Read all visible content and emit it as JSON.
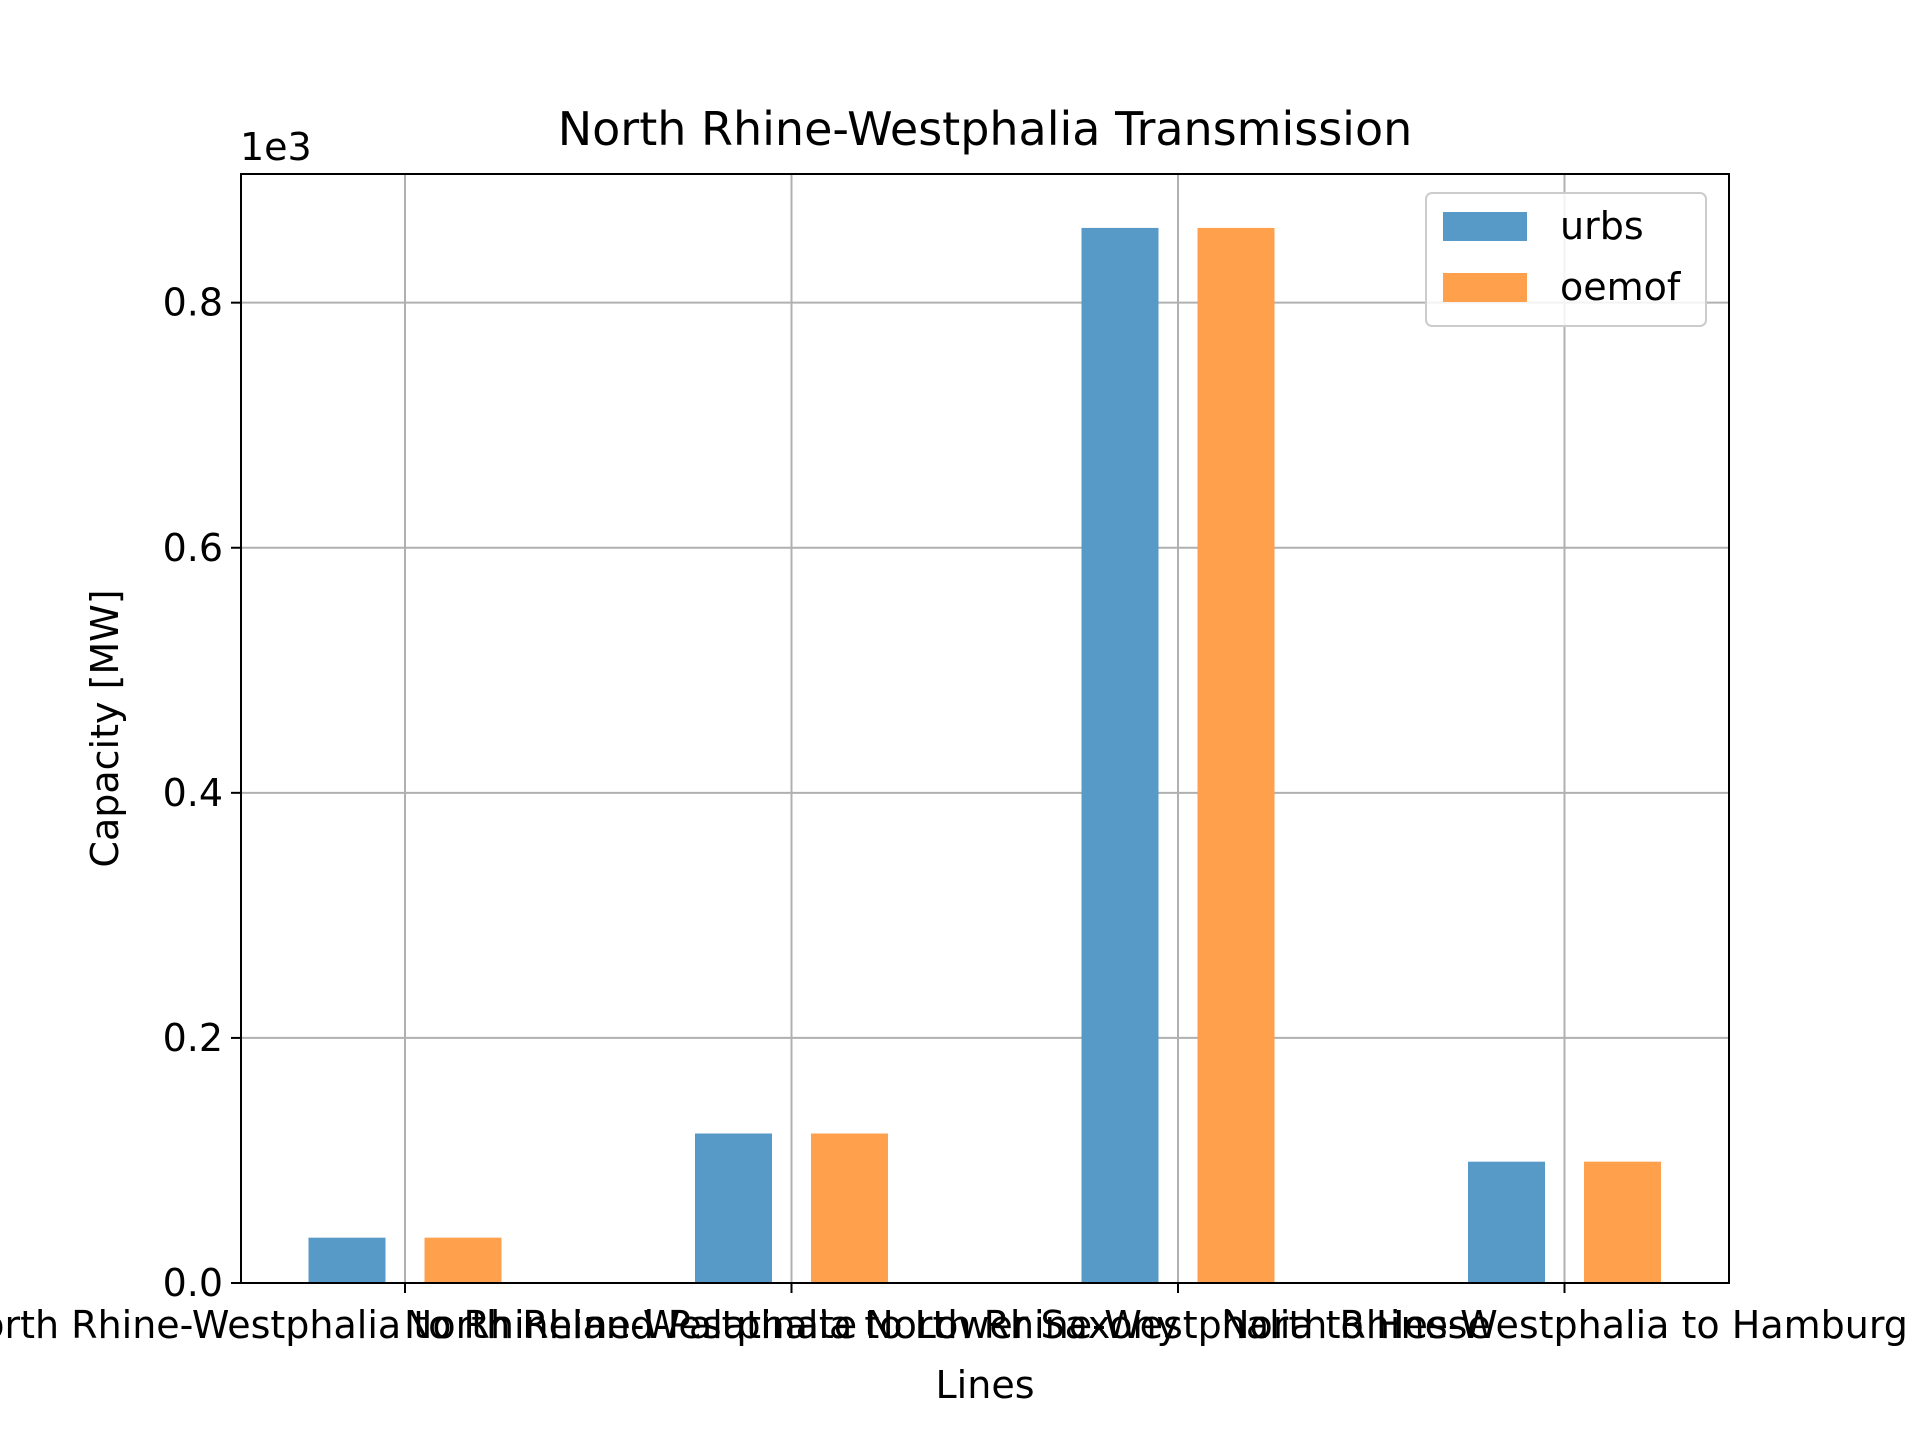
{
  "chart_data": {
    "type": "bar",
    "title": "North Rhine-Westphalia Transmission",
    "xlabel": "Lines",
    "ylabel": "Capacity [MW]",
    "y_offset_text": "1e3",
    "categories": [
      "North Rhine-Westphalia to Rhineland-Palatinate",
      "North Rhine-Westphalia to Lower Saxony",
      "North Rhine-Westphalia to Hesse",
      "North Rhine-Westphalia to Hamburg"
    ],
    "series": [
      {
        "name": "urbs",
        "color": "#5799c7",
        "values": [
          0.037,
          0.122,
          0.861,
          0.099
        ]
      },
      {
        "name": "oemof",
        "color": "#ffa04c",
        "values": [
          0.037,
          0.122,
          0.861,
          0.099
        ]
      }
    ],
    "ylim": [
      0,
      0.905
    ],
    "yticks": [
      "0.0",
      "0.2",
      "0.4",
      "0.6",
      "0.8"
    ],
    "grid": true,
    "legend_position": "top-right"
  }
}
